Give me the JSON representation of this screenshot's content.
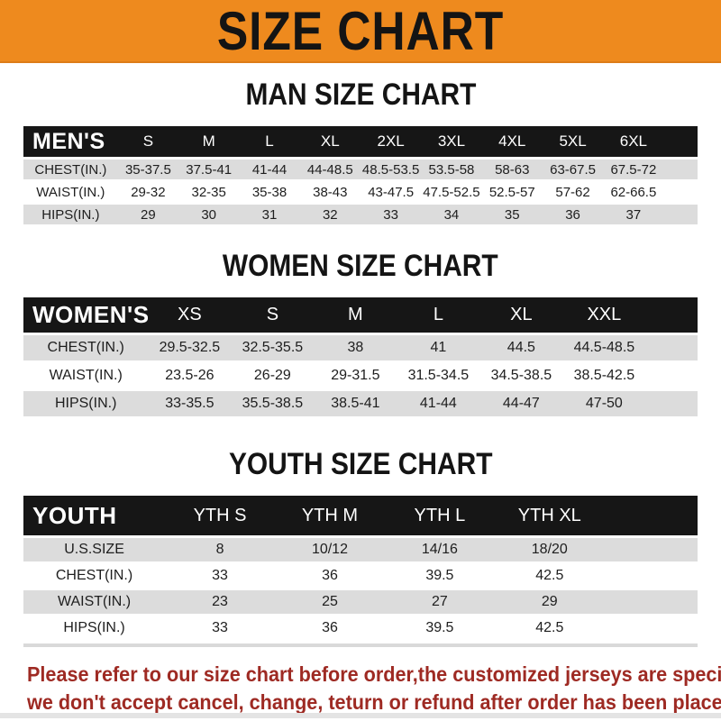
{
  "banner": {
    "title": "SIZE CHART"
  },
  "sections": [
    {
      "title": "MAN SIZE CHART",
      "header": [
        "MEN'S",
        "S",
        "M",
        "L",
        "XL",
        "2XL",
        "3XL",
        "4XL",
        "5XL",
        "6XL"
      ],
      "rows": [
        {
          "label": "CHEST(IN.)",
          "values": [
            "35-37.5",
            "37.5-41",
            "41-44",
            "44-48.5",
            "48.5-53.5",
            "53.5-58",
            "58-63",
            "63-67.5",
            "67.5-72"
          ]
        },
        {
          "label": "WAIST(IN.)",
          "values": [
            "29-32",
            "32-35",
            "35-38",
            "38-43",
            "43-47.5",
            "47.5-52.5",
            "52.5-57",
            "57-62",
            "62-66.5"
          ]
        },
        {
          "label": "HIPS(IN.)",
          "values": [
            "29",
            "30",
            "31",
            "32",
            "33",
            "34",
            "35",
            "36",
            "37"
          ]
        }
      ]
    },
    {
      "title": "WOMEN SIZE CHART",
      "header": [
        "WOMEN'S",
        "XS",
        "S",
        "M",
        "L",
        "XL",
        "XXL"
      ],
      "rows": [
        {
          "label": "CHEST(IN.)",
          "values": [
            "29.5-32.5",
            "32.5-35.5",
            "38",
            "41",
            "44.5",
            "44.5-48.5"
          ]
        },
        {
          "label": "WAIST(IN.)",
          "values": [
            "23.5-26",
            "26-29",
            "29-31.5",
            "31.5-34.5",
            "34.5-38.5",
            "38.5-42.5"
          ]
        },
        {
          "label": "HIPS(IN.)",
          "values": [
            "33-35.5",
            "35.5-38.5",
            "38.5-41",
            "41-44",
            "44-47",
            "47-50"
          ]
        }
      ]
    },
    {
      "title": "YOUTH SIZE CHART",
      "header": [
        "YOUTH",
        "YTH S",
        "YTH M",
        "YTH L",
        "YTH XL"
      ],
      "rows": [
        {
          "label": "U.S.SIZE",
          "values": [
            "8",
            "10/12",
            "14/16",
            "18/20"
          ]
        },
        {
          "label": "CHEST(IN.)",
          "values": [
            "33",
            "36",
            "39.5",
            "42.5"
          ]
        },
        {
          "label": "WAIST(IN.)",
          "values": [
            "23",
            "25",
            "27",
            "29"
          ]
        },
        {
          "label": "HIPS(IN.)",
          "values": [
            "33",
            "36",
            "39.5",
            "42.5"
          ]
        }
      ]
    }
  ],
  "footer": {
    "line1": "Please refer to our size chart before order,the customized jerseys are special products,",
    "line2": "we don't accept cancel, change, teturn or refund after order has been placed!"
  },
  "colors": {
    "banner_bg": "#ee8a1e",
    "header_bar": "#161616",
    "stripe_gray": "#dcdcdc",
    "footer_red": "#9e2a23"
  }
}
